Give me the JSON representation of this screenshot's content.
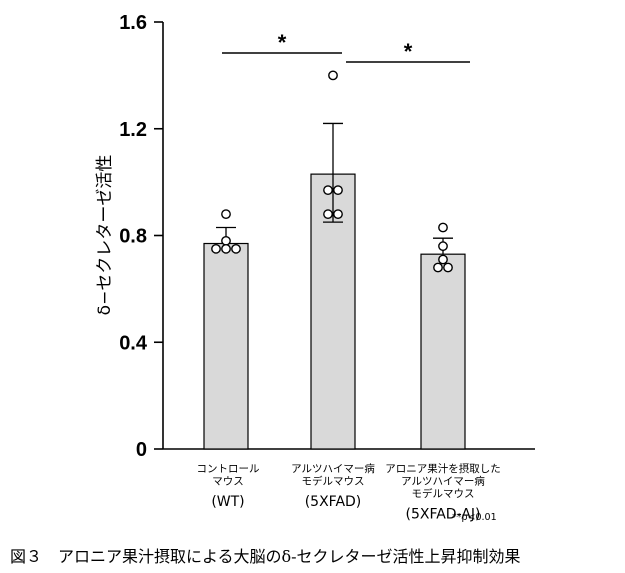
{
  "chart_data": {
    "type": "bar",
    "ylabel": "δ−セクレターゼ活性",
    "ylim": [
      0,
      1.6
    ],
    "yticks": [
      "0",
      "0.4",
      "0.8",
      "1.2",
      "1.6"
    ],
    "yticks_values": [
      0,
      0.4,
      0.8,
      1.2,
      1.6
    ],
    "categories": [
      {
        "lines": [
          "コントロール",
          "マウス"
        ],
        "sub": "(WT)"
      },
      {
        "lines": [
          "アルツハイマー病",
          "モデルマウス"
        ],
        "sub": "(5XFAD)"
      },
      {
        "lines": [
          "アロニア果汁を摂取した",
          "アルツハイマー病",
          "モデルマウス"
        ],
        "sub": "(5XFAD-AJ)"
      }
    ],
    "values": [
      0.77,
      1.03,
      0.73
    ],
    "error_upper": [
      0.83,
      1.22,
      0.79
    ],
    "error_lower": [
      0.77,
      0.85,
      0.73
    ],
    "points": [
      [
        0.88,
        0.78,
        0.75,
        0.75,
        0.75
      ],
      [
        1.4,
        0.97,
        0.97,
        0.88,
        0.88
      ],
      [
        0.83,
        0.76,
        0.71,
        0.68,
        0.68
      ]
    ],
    "bar_color": "#d9d9d9",
    "significance": [
      {
        "from": 0,
        "to": 1,
        "label": "*"
      },
      {
        "from": 1,
        "to": 2,
        "label": "*"
      }
    ],
    "p_note": "**p<0.01"
  },
  "caption": "図３　アロニア果汁摂取による大脳のδ-セクレターゼ活性上昇抑制効果"
}
